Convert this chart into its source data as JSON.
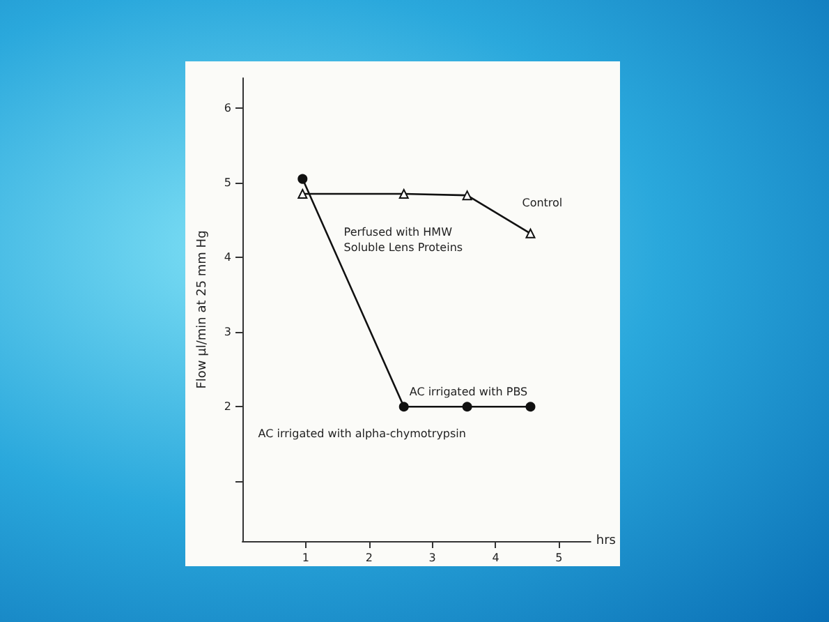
{
  "chart_data": {
    "type": "line",
    "xlabel": "hrs",
    "ylabel": "Flow µl/min at 25 mm Hg",
    "xlim": [
      0,
      5.5
    ],
    "xticks": [
      1,
      2,
      3,
      4,
      5
    ],
    "ylim": [
      0.2,
      6.4
    ],
    "yticks": [
      {
        "value": 1,
        "label": null
      },
      2,
      3,
      4,
      5,
      6
    ],
    "grid": false,
    "legend": false,
    "line_style": "solid",
    "series": [
      {
        "x": [
          0.95,
          2.55,
          3.55,
          4.55
        ],
        "values": [
          5.05,
          2.0,
          2.0,
          2.0
        ],
        "color": "#111111",
        "marker": "circle"
      },
      {
        "name": "Control",
        "x": [
          0.95,
          2.55,
          3.55,
          4.55
        ],
        "values": [
          4.85,
          4.85,
          4.83,
          4.32
        ],
        "color": "#111111",
        "marker": "triangle"
      }
    ],
    "annotations": [
      {
        "text": "Perfused with HMW\nSoluble Lens Proteins",
        "x": 1.25,
        "y": 4.55
      },
      {
        "text": "AC irrigated with PBS",
        "x": 2.55,
        "y": 2.0
      },
      {
        "text": "AC irrigated with alpha-chymotrypsin",
        "x": 3.55,
        "y": 2.0
      }
    ]
  }
}
